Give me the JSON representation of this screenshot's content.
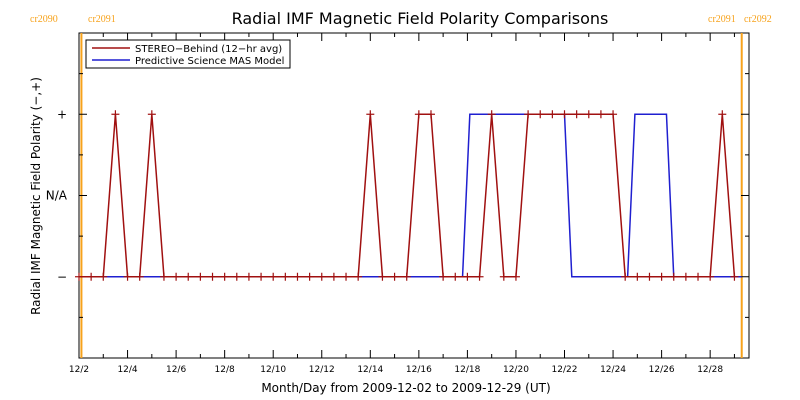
{
  "chart_data": {
    "type": "line",
    "title": "Radial IMF Magnetic Field Polarity Comparisons",
    "xlabel": "Month/Day from 2009-12-02 to 2009-12-29 (UT)",
    "ylabel": "Radial IMF Magnetic Field Polarity (−,+)",
    "x_tick_labels": [
      "12/2",
      "12/4",
      "12/6",
      "12/8",
      "12/10",
      "12/12",
      "12/14",
      "12/16",
      "12/18",
      "12/20",
      "12/22",
      "12/24",
      "12/26",
      "12/28"
    ],
    "x_tick_days": [
      2,
      4,
      6,
      8,
      10,
      12,
      14,
      16,
      18,
      20,
      22,
      24,
      26,
      28
    ],
    "xlim": [
      2,
      29.6
    ],
    "y_tick_labels": [
      "−",
      "N/A",
      "+"
    ],
    "y_tick_values": [
      -1,
      0,
      1
    ],
    "ylim": [
      -2,
      2
    ],
    "carrington_markers": [
      {
        "label_left": "cr2090",
        "label_right": "cr2091",
        "day": 2.1
      },
      {
        "label_left": "cr2091",
        "label_right": "cr2092",
        "day": 29.3
      }
    ],
    "colors": {
      "stereo": "#a01010",
      "mas": "#1f1fd0",
      "carrington": "#f7a21b"
    },
    "series": [
      {
        "name": "STEREO−Behind (12−hr avg)",
        "marker": "plus",
        "points": [
          [
            2.0,
            -1
          ],
          [
            2.5,
            -1
          ],
          [
            3.0,
            -1
          ],
          [
            3.5,
            1
          ],
          [
            4.0,
            -1
          ],
          [
            4.5,
            -1
          ],
          [
            5.0,
            1
          ],
          [
            5.5,
            -1
          ],
          [
            6.0,
            -1
          ],
          [
            6.5,
            -1
          ],
          [
            7.0,
            -1
          ],
          [
            7.5,
            -1
          ],
          [
            8.0,
            -1
          ],
          [
            8.5,
            -1
          ],
          [
            9.0,
            -1
          ],
          [
            9.5,
            -1
          ],
          [
            10.0,
            -1
          ],
          [
            10.5,
            -1
          ],
          [
            11.0,
            -1
          ],
          [
            11.5,
            -1
          ],
          [
            12.0,
            -1
          ],
          [
            12.5,
            -1
          ],
          [
            13.0,
            -1
          ],
          [
            13.5,
            -1
          ],
          [
            14.0,
            1
          ],
          [
            14.5,
            -1
          ],
          [
            15.0,
            -1
          ],
          [
            15.5,
            -1
          ],
          [
            16.0,
            1
          ],
          [
            16.5,
            1
          ],
          [
            17.0,
            -1
          ],
          [
            17.5,
            -1
          ],
          [
            18.0,
            -1
          ],
          [
            18.5,
            -1
          ],
          [
            19.0,
            1
          ],
          [
            19.5,
            -1
          ],
          [
            20.0,
            -1
          ],
          [
            20.5,
            1
          ],
          [
            21.0,
            1
          ],
          [
            21.5,
            1
          ],
          [
            22.0,
            1
          ],
          [
            22.5,
            1
          ],
          [
            23.0,
            1
          ],
          [
            23.5,
            1
          ],
          [
            24.0,
            1
          ],
          [
            24.5,
            -1
          ],
          [
            25.0,
            -1
          ],
          [
            25.5,
            -1
          ],
          [
            26.0,
            -1
          ],
          [
            26.5,
            -1
          ],
          [
            27.0,
            -1
          ],
          [
            27.5,
            -1
          ],
          [
            28.0,
            -1
          ],
          [
            28.5,
            1
          ],
          [
            29.0,
            -1
          ]
        ]
      },
      {
        "name": "Predictive Science MAS Model",
        "marker": "none",
        "points": [
          [
            2.0,
            -1
          ],
          [
            17.8,
            -1
          ],
          [
            18.1,
            1
          ],
          [
            22.0,
            1
          ],
          [
            22.3,
            -1
          ],
          [
            24.6,
            -1
          ],
          [
            24.9,
            1
          ],
          [
            26.2,
            1
          ],
          [
            26.5,
            -1
          ],
          [
            29.3,
            -1
          ]
        ]
      }
    ]
  }
}
